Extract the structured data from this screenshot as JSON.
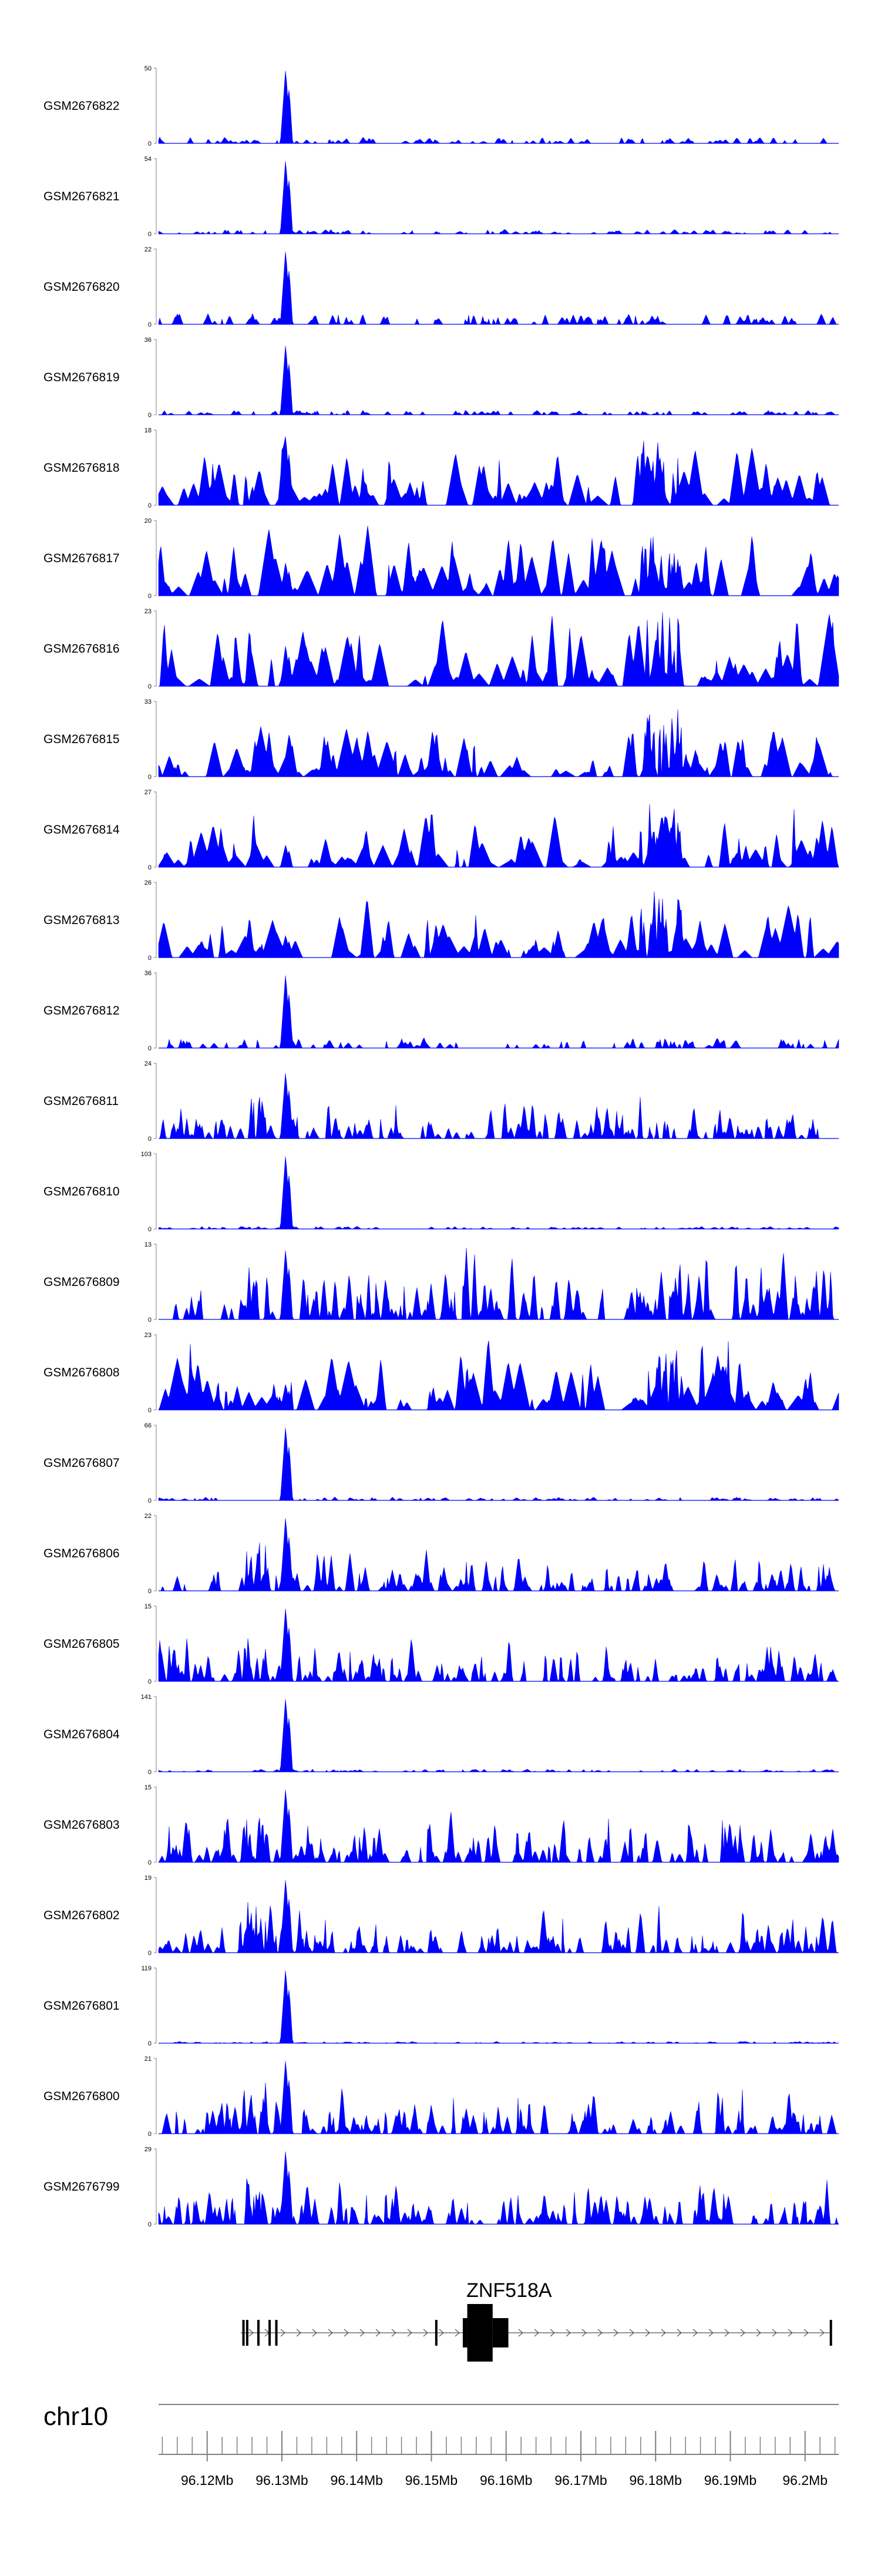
{
  "colors": {
    "signal": "#0000ff",
    "gene": "#000000",
    "axis": "#7f7f7f"
  },
  "chart_data": {
    "type": "area",
    "title": "",
    "chromosome": "chr10",
    "genome_axis": {
      "ticks": [
        "96.12Mb",
        "96.13Mb",
        "96.14Mb",
        "96.15Mb",
        "96.16Mb",
        "96.17Mb",
        "96.18Mb",
        "96.19Mb",
        "96.2Mb"
      ],
      "tick_values": [
        96.12,
        96.13,
        96.14,
        96.15,
        96.16,
        96.17,
        96.18,
        96.19,
        96.2
      ],
      "range": [
        96.1135,
        96.2045
      ]
    },
    "gene": {
      "name": "ZNF518A",
      "strand": "+",
      "exons": [
        [
          96.1247,
          96.1249
        ],
        [
          96.1252,
          96.1254
        ],
        [
          96.1267,
          96.1269
        ],
        [
          96.1282,
          96.1283
        ],
        [
          96.1291,
          96.1293
        ],
        [
          96.1505,
          96.1507
        ],
        [
          96.1542,
          96.1548
        ],
        [
          96.1548,
          96.1582
        ],
        [
          96.1582,
          96.1603
        ],
        [
          96.2033,
          96.2034
        ]
      ],
      "exon_kind": [
        "small",
        "small",
        "small",
        "small",
        "small",
        "small",
        "mid",
        "big",
        "mid",
        "small"
      ],
      "range": [
        96.1245,
        96.2035
      ]
    },
    "series": [
      {
        "name": "GSM2676822",
        "ymax": "50",
        "ymin": "0",
        "profile": "sparse",
        "peak": 1.0,
        "noise": 0.07,
        "seed": 101
      },
      {
        "name": "GSM2676821",
        "ymax": "54",
        "ymin": "0",
        "profile": "sparse",
        "peak": 1.0,
        "noise": 0.05,
        "seed": 102
      },
      {
        "name": "GSM2676820",
        "ymax": "22",
        "ymin": "0",
        "profile": "sparse",
        "peak": 1.0,
        "noise": 0.12,
        "seed": 103
      },
      {
        "name": "GSM2676819",
        "ymax": "36",
        "ymin": "0",
        "profile": "sparse",
        "peak": 0.95,
        "noise": 0.05,
        "seed": 104
      },
      {
        "name": "GSM2676818",
        "ymax": "18",
        "ymin": "0",
        "profile": "spiky",
        "peak": 0.95,
        "noise": 0.55,
        "seed": 105
      },
      {
        "name": "GSM2676817",
        "ymax": "20",
        "ymin": "0",
        "profile": "spiky",
        "peak": 0.45,
        "noise": 0.6,
        "seed": 106
      },
      {
        "name": "GSM2676816",
        "ymax": "23",
        "ymin": "0",
        "profile": "spiky",
        "peak": 0.55,
        "noise": 0.55,
        "seed": 107
      },
      {
        "name": "GSM2676815",
        "ymax": "33",
        "ymin": "0",
        "profile": "spiky",
        "peak": 0.2,
        "noise": 0.4,
        "seed": 108
      },
      {
        "name": "GSM2676814",
        "ymax": "27",
        "ymin": "0",
        "profile": "spiky",
        "peak": 0.3,
        "noise": 0.45,
        "seed": 109
      },
      {
        "name": "GSM2676813",
        "ymax": "26",
        "ymin": "0",
        "profile": "spiky",
        "peak": 0.3,
        "noise": 0.45,
        "seed": 110
      },
      {
        "name": "GSM2676812",
        "ymax": "36",
        "ymin": "0",
        "profile": "sparse",
        "peak": 1.0,
        "noise": 0.12,
        "seed": 111
      },
      {
        "name": "GSM2676811",
        "ymax": "24",
        "ymin": "0",
        "profile": "dense",
        "peak": 0.9,
        "noise": 0.25,
        "seed": 112
      },
      {
        "name": "GSM2676810",
        "ymax": "103",
        "ymin": "0",
        "profile": "sparse",
        "peak": 1.0,
        "noise": 0.03,
        "seed": 113
      },
      {
        "name": "GSM2676809",
        "ymax": "13",
        "ymin": "0",
        "profile": "dense",
        "peak": 0.95,
        "noise": 0.45,
        "seed": 114
      },
      {
        "name": "GSM2676808",
        "ymax": "23",
        "ymin": "0",
        "profile": "spiky",
        "peak": 0.35,
        "noise": 0.6,
        "seed": 115
      },
      {
        "name": "GSM2676807",
        "ymax": "66",
        "ymin": "0",
        "profile": "sparse",
        "peak": 1.0,
        "noise": 0.04,
        "seed": 116
      },
      {
        "name": "GSM2676806",
        "ymax": "22",
        "ymin": "0",
        "profile": "dense",
        "peak": 1.0,
        "noise": 0.25,
        "seed": 117
      },
      {
        "name": "GSM2676805",
        "ymax": "15",
        "ymin": "0",
        "profile": "dense",
        "peak": 1.0,
        "noise": 0.3,
        "seed": 118
      },
      {
        "name": "GSM2676804",
        "ymax": "141",
        "ymin": "0",
        "profile": "sparse",
        "peak": 1.0,
        "noise": 0.03,
        "seed": 119
      },
      {
        "name": "GSM2676803",
        "ymax": "15",
        "ymin": "0",
        "profile": "dense",
        "peak": 1.0,
        "noise": 0.35,
        "seed": 120
      },
      {
        "name": "GSM2676802",
        "ymax": "19",
        "ymin": "0",
        "profile": "dense",
        "peak": 1.0,
        "noise": 0.3,
        "seed": 121
      },
      {
        "name": "GSM2676801",
        "ymax": "119",
        "ymin": "0",
        "profile": "sparse",
        "peak": 1.0,
        "noise": 0.02,
        "seed": 122
      },
      {
        "name": "GSM2676800",
        "ymax": "21",
        "ymin": "0",
        "profile": "dense",
        "peak": 1.0,
        "noise": 0.3,
        "seed": 123
      },
      {
        "name": "GSM2676799",
        "ymax": "29",
        "ymin": "0",
        "profile": "dense",
        "peak": 1.0,
        "noise": 0.3,
        "seed": 124
      }
    ]
  }
}
